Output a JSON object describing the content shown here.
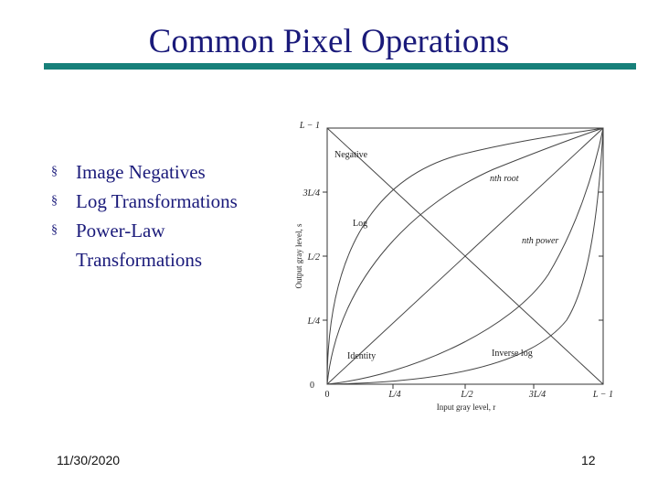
{
  "slide": {
    "title": "Common Pixel Operations",
    "bullets": [
      "Image Negatives",
      "Log Transformations",
      "Power-Law Transformations"
    ],
    "bullet_marker": "§",
    "footer_date": "11/30/2020",
    "page_number": "12",
    "colors": {
      "title": "#1a1a7a",
      "rule": "#17807a"
    }
  },
  "figure": {
    "x_ticks": [
      "0",
      "L/4",
      "L/2",
      "3L/4",
      "L − 1"
    ],
    "y_ticks": [
      "0",
      "L/4",
      "L/2",
      "3L/4",
      "L − 1"
    ],
    "x_axis_label": "Input gray level, r",
    "y_axis_label": "Output gray level, s",
    "curve_labels": {
      "negative": "Negative",
      "nth_root": "nth root",
      "log": "Log",
      "nth_power": "nth power",
      "identity": "Identity",
      "inverse_log": "Inverse log"
    }
  }
}
